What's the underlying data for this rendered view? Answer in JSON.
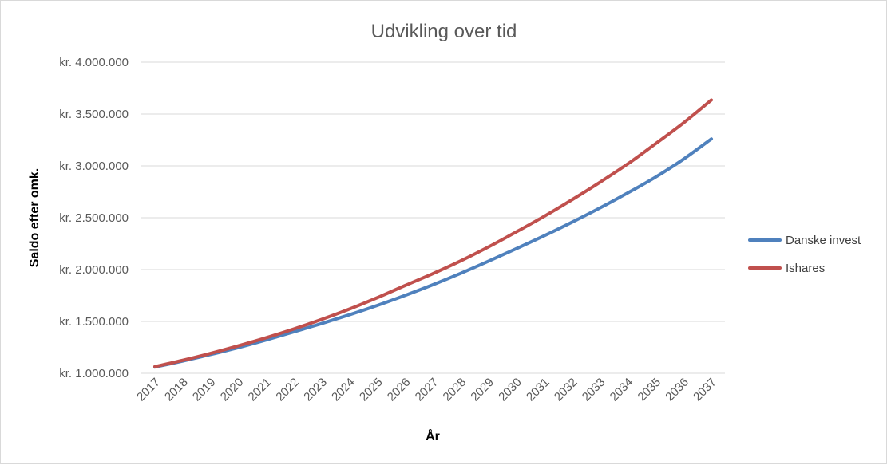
{
  "chart_data": {
    "type": "line",
    "title": "Udvikling over tid",
    "xlabel": "År",
    "ylabel": "Saldo efter omk.",
    "categories": [
      "2017",
      "2018",
      "2019",
      "2020",
      "2021",
      "2022",
      "2023",
      "2024",
      "2025",
      "2026",
      "2027",
      "2028",
      "2029",
      "2030",
      "2031",
      "2032",
      "2033",
      "2034",
      "2035",
      "2036",
      "2037"
    ],
    "y_ticks": [
      1000000,
      1500000,
      2000000,
      2500000,
      3000000,
      3500000,
      4000000
    ],
    "y_tick_labels": [
      "kr. 1.000.000",
      "kr. 1.500.000",
      "kr. 2.000.000",
      "kr. 2.500.000",
      "kr. 3.000.000",
      "kr. 3.500.000",
      "kr. 4.000.000"
    ],
    "ylim": [
      1000000,
      4000000
    ],
    "grid": true,
    "legend_position": "right",
    "series": [
      {
        "name": "Danske invest",
        "color": "#4f81bd",
        "values": [
          1060000,
          1118000,
          1181000,
          1248000,
          1322000,
          1400000,
          1480000,
          1565000,
          1655000,
          1752000,
          1855000,
          1965000,
          2082000,
          2203000,
          2327000,
          2458000,
          2595000,
          2740000,
          2893000,
          3065000,
          3260000
        ]
      },
      {
        "name": "Ishares",
        "color": "#c0504d",
        "values": [
          1064000,
          1125000,
          1192000,
          1265000,
          1343000,
          1428000,
          1520000,
          1620000,
          1730000,
          1847000,
          1962000,
          2085000,
          2220000,
          2365000,
          2515000,
          2675000,
          2843000,
          3020000,
          3215000,
          3415000,
          3635000
        ]
      }
    ]
  }
}
